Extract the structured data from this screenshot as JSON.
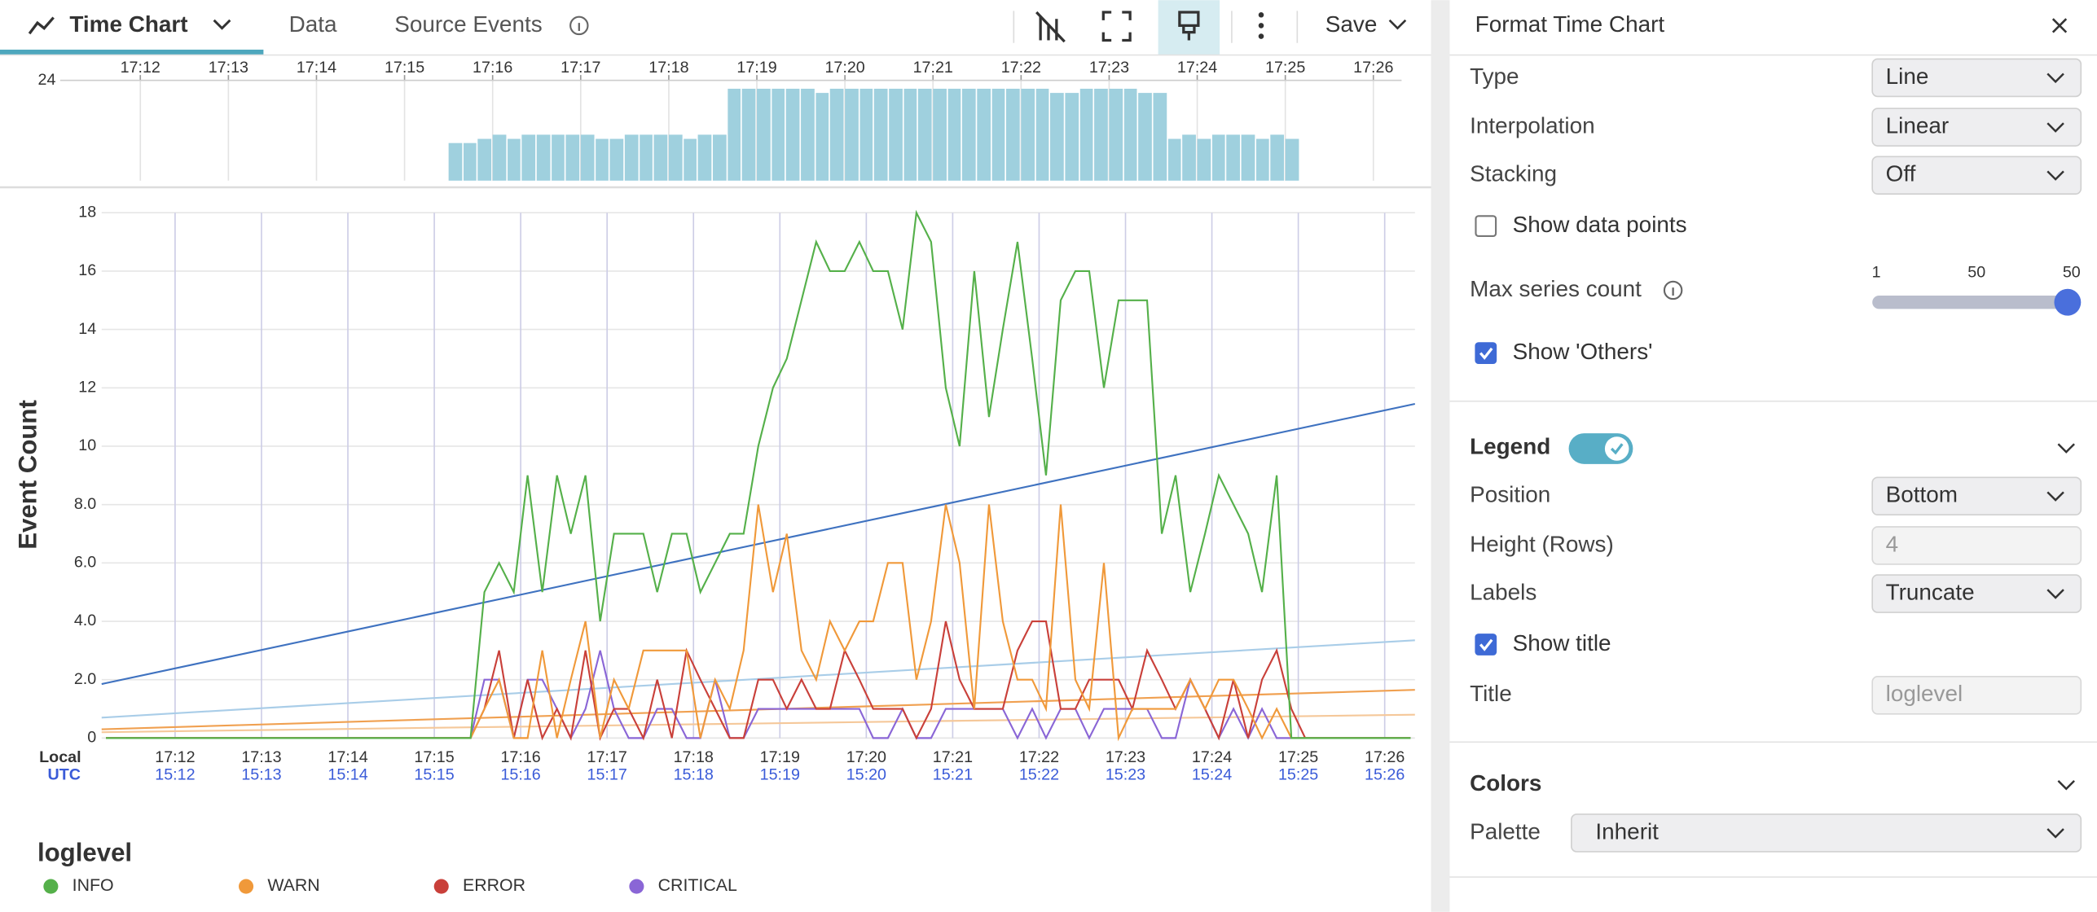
{
  "toolbar": {
    "title": "Time Chart",
    "tabs": [
      "Data",
      "Source Events"
    ],
    "save": "Save"
  },
  "chart_data": [
    {
      "type": "line",
      "ylabel": "Event Count",
      "x_row_labels": [
        "Local",
        "UTC"
      ],
      "xlim": [
        1031.15,
        1046.35
      ],
      "xticks": [
        {
          "value": 1032,
          "label": "17:12"
        },
        {
          "value": 1033,
          "label": "17:13"
        },
        {
          "value": 1034,
          "label": "17:14"
        },
        {
          "value": 1035,
          "label": "17:15"
        },
        {
          "value": 1036,
          "label": "17:16"
        },
        {
          "value": 1037,
          "label": "17:17"
        },
        {
          "value": 1038,
          "label": "17:18"
        },
        {
          "value": 1039,
          "label": "17:19"
        },
        {
          "value": 1040,
          "label": "17:20"
        },
        {
          "value": 1041,
          "label": "17:21"
        },
        {
          "value": 1042,
          "label": "17:22"
        },
        {
          "value": 1043,
          "label": "17:23"
        },
        {
          "value": 1044,
          "label": "17:24"
        },
        {
          "value": 1045,
          "label": "17:25"
        },
        {
          "value": 1046,
          "label": "17:26"
        }
      ],
      "xticks_utc": [
        "15:12",
        "15:13",
        "15:14",
        "15:15",
        "15:16",
        "15:17",
        "15:18",
        "15:19",
        "15:20",
        "15:21",
        "15:22",
        "15:23",
        "15:24",
        "15:25",
        "15:26"
      ],
      "ylim": [
        0,
        18
      ],
      "yticks": [
        0,
        {
          "value": 2,
          "label": "2.0"
        },
        {
          "value": 4,
          "label": "4.0"
        },
        {
          "value": 6,
          "label": "6.0"
        },
        {
          "value": 8,
          "label": "8.0"
        },
        10,
        12,
        14,
        16,
        18
      ],
      "grid": true,
      "legend": "bottom",
      "legend_title": "loglevel",
      "x": [
        1031.2,
        1035.42,
        1035.58,
        1035.75,
        1035.92,
        1036.08,
        1036.25,
        1036.42,
        1036.58,
        1036.75,
        1036.92,
        1037.08,
        1037.25,
        1037.42,
        1037.58,
        1037.75,
        1037.92,
        1038.08,
        1038.25,
        1038.42,
        1038.58,
        1038.75,
        1038.92,
        1039.08,
        1039.25,
        1039.42,
        1039.58,
        1039.75,
        1039.92,
        1040.08,
        1040.25,
        1040.42,
        1040.58,
        1040.75,
        1040.92,
        1041.08,
        1041.25,
        1041.42,
        1041.58,
        1041.75,
        1041.92,
        1042.08,
        1042.25,
        1042.42,
        1042.58,
        1042.75,
        1042.92,
        1043.08,
        1043.25,
        1043.42,
        1043.58,
        1043.75,
        1043.92,
        1044.08,
        1044.25,
        1044.42,
        1044.58,
        1044.75,
        1044.92,
        1045.08,
        1046.3
      ],
      "series": [
        {
          "name": "INFO",
          "color": "#55b04a",
          "values": [
            0,
            0,
            5,
            6,
            5,
            9,
            5,
            9,
            7,
            9,
            4,
            7,
            7,
            7,
            5,
            7,
            7,
            5,
            6,
            7,
            7,
            10,
            12,
            13,
            15,
            17,
            16,
            16,
            17,
            16,
            16,
            14,
            18,
            17,
            12,
            10,
            16,
            11,
            14,
            17,
            13,
            9,
            15,
            16,
            16,
            12,
            15,
            15,
            15,
            7,
            9,
            5,
            7,
            9,
            8,
            7,
            5,
            9,
            0,
            0,
            0
          ]
        },
        {
          "name": "WARN",
          "color": "#f0993a",
          "values": [
            0,
            0,
            1,
            2,
            0,
            0,
            3,
            0,
            2,
            4,
            0,
            2,
            1,
            3,
            3,
            3,
            3,
            0,
            2,
            1,
            3,
            8,
            5,
            7,
            3,
            2,
            4,
            3,
            4,
            4,
            6,
            6,
            2,
            4,
            8,
            6,
            1,
            8,
            4,
            2,
            2,
            1,
            8,
            2,
            1,
            6,
            0,
            1,
            1,
            1,
            1,
            2,
            1,
            2,
            2,
            1,
            0,
            1,
            0,
            0,
            0
          ]
        },
        {
          "name": "ERROR",
          "color": "#c9403a",
          "values": [
            0,
            0,
            1,
            3,
            0,
            2,
            0,
            1,
            0,
            3,
            0,
            1,
            1,
            0,
            2,
            0,
            3,
            2,
            1,
            0,
            0,
            2,
            2,
            1,
            2,
            1,
            1,
            3,
            2,
            1,
            1,
            1,
            0,
            1,
            4,
            2,
            1,
            1,
            1,
            3,
            4,
            4,
            1,
            1,
            2,
            2,
            2,
            1,
            3,
            2,
            1,
            2,
            1,
            0,
            2,
            0,
            2,
            3,
            1,
            0,
            0
          ]
        },
        {
          "name": "CRITICAL",
          "color": "#8a66d6",
          "values": [
            0,
            0,
            2,
            2,
            0,
            2,
            2,
            1,
            0,
            1,
            3,
            1,
            0,
            0,
            1,
            1,
            0,
            0,
            2,
            0,
            0,
            1,
            1,
            1,
            1,
            1,
            1,
            1,
            1,
            0,
            0,
            1,
            0,
            0,
            1,
            1,
            1,
            1,
            1,
            0,
            1,
            0,
            1,
            1,
            0,
            1,
            1,
            1,
            1,
            0,
            0,
            2,
            1,
            0,
            1,
            0,
            1,
            0,
            0,
            0,
            0
          ]
        }
      ],
      "trends": [
        {
          "color": "#3f72c0",
          "values": [
            1.85,
            11.45
          ]
        },
        {
          "color": "#a9cde8",
          "values": [
            0.7,
            3.35
          ]
        },
        {
          "color": "#f0a050",
          "values": [
            0.3,
            1.65
          ]
        },
        {
          "color": "#f5c89a",
          "values": [
            0.2,
            0.8
          ]
        }
      ]
    },
    {
      "type": "histogram",
      "color": "#9fd0de",
      "xlim": [
        1031.09,
        1046.32
      ],
      "xticks": [
        {
          "value": 1032,
          "label": "17:12"
        },
        {
          "value": 1033,
          "label": "17:13"
        },
        {
          "value": 1034,
          "label": "17:14"
        },
        {
          "value": 1035,
          "label": "17:15"
        },
        {
          "value": 1036,
          "label": "17:16"
        },
        {
          "value": 1037,
          "label": "17:17"
        },
        {
          "value": 1038,
          "label": "17:18"
        },
        {
          "value": 1039,
          "label": "17:19"
        },
        {
          "value": 1040,
          "label": "17:20"
        },
        {
          "value": 1041,
          "label": "17:21"
        },
        {
          "value": 1042,
          "label": "17:22"
        },
        {
          "value": 1043,
          "label": "17:23"
        },
        {
          "value": 1044,
          "label": "17:24"
        },
        {
          "value": 1045,
          "label": "17:25"
        },
        {
          "value": 1046,
          "label": "17:26"
        }
      ],
      "ylim": [
        0,
        24
      ],
      "yticks": [
        24
      ],
      "bins": [
        1035.5,
        1035.67,
        1035.83,
        1036,
        1036.17,
        1036.33,
        1036.5,
        1036.67,
        1036.83,
        1037,
        1037.17,
        1037.33,
        1037.5,
        1037.67,
        1037.83,
        1038,
        1038.17,
        1038.33,
        1038.5,
        1038.67,
        1038.83,
        1039,
        1039.17,
        1039.33,
        1039.5,
        1039.67,
        1039.83,
        1040,
        1040.17,
        1040.33,
        1040.5,
        1040.67,
        1040.83,
        1041,
        1041.17,
        1041.33,
        1041.5,
        1041.67,
        1041.83,
        1042,
        1042.17,
        1042.33,
        1042.5,
        1042.67,
        1042.83,
        1043,
        1043.17,
        1043.33,
        1043.5,
        1043.67,
        1043.83,
        1044,
        1044.17,
        1044.33,
        1044.5,
        1044.67,
        1044.83,
        1045,
        1045.17
      ],
      "values": [
        9,
        9,
        10,
        11,
        10,
        11,
        11,
        11,
        11,
        11,
        10,
        10,
        11,
        11,
        11,
        11,
        10,
        11,
        11,
        22,
        22,
        22,
        22,
        22,
        22,
        21,
        22,
        22,
        22,
        22,
        22,
        22,
        22,
        22,
        22,
        22,
        22,
        22,
        22,
        22,
        22,
        21,
        21,
        22,
        22,
        22,
        22,
        21,
        21,
        10,
        11,
        10,
        11,
        11,
        11,
        10,
        11,
        10,
        1
      ]
    }
  ],
  "format_panel": {
    "title": "Format Time Chart",
    "fields": [
      {
        "label": "Type",
        "value": "Line"
      },
      {
        "label": "Interpolation",
        "value": "Linear"
      },
      {
        "label": "Stacking",
        "value": "Off"
      }
    ],
    "show_data_points": {
      "label": "Show data points",
      "checked": false
    },
    "max_series": {
      "label": "Max series count",
      "scale_labels": [
        "1",
        "50",
        "50"
      ]
    },
    "show_others": {
      "label": "Show 'Others'",
      "checked": true
    },
    "legend": {
      "title": "Legend",
      "enabled": true,
      "fields": [
        {
          "label": "Position",
          "value": "Bottom"
        },
        {
          "label": "Height (Rows)",
          "value": "4"
        },
        {
          "label": "Labels",
          "value": "Truncate"
        }
      ],
      "show_title": {
        "label": "Show title",
        "checked": true
      },
      "title_field": {
        "label": "Title",
        "value": "loglevel"
      }
    },
    "colors": {
      "title": "Colors",
      "palette": {
        "label": "Palette",
        "value": "Inherit"
      }
    }
  }
}
